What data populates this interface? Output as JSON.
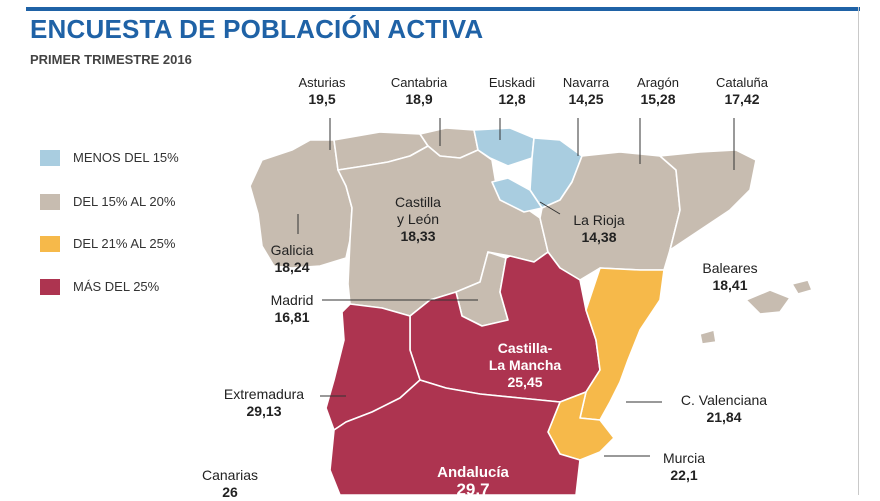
{
  "title": "ENCUESTA DE POBLACIÓN ACTIVA",
  "subtitle": "PRIMER TRIMESTRE 2016",
  "colors": {
    "accent": "#1f62a6",
    "menos_15": "#a9cde0",
    "entre_15_20": "#c7bcb0",
    "entre_21_25": "#f6b94a",
    "mas_25": "#ad3450",
    "border": "#ffffff"
  },
  "legend": [
    {
      "label": "MENOS DEL 15%",
      "color": "#a9cde0"
    },
    {
      "label": "DEL 15% AL 20%",
      "color": "#c7bcb0"
    },
    {
      "label": "DEL 21% AL 25%",
      "color": "#f6b94a"
    },
    {
      "label": "MÁS DEL 25%",
      "color": "#ad3450"
    }
  ],
  "regions": {
    "asturias": {
      "name": "Asturias",
      "value": "19,5"
    },
    "cantabria": {
      "name": "Cantabria",
      "value": "18,9"
    },
    "euskadi": {
      "name": "Euskadi",
      "value": "12,8"
    },
    "navarra": {
      "name": "Navarra",
      "value": "14,25"
    },
    "aragon": {
      "name": "Aragón",
      "value": "15,28"
    },
    "cataluna": {
      "name": "Cataluña",
      "value": "17,42"
    },
    "castilla_leon": {
      "name_line1": "Castilla",
      "name_line2": "y León",
      "value": "18,33"
    },
    "la_rioja": {
      "name": "La Rioja",
      "value": "14,38"
    },
    "galicia": {
      "name": "Galicia",
      "value": "18,24"
    },
    "baleares": {
      "name": "Baleares",
      "value": "18,41"
    },
    "madrid": {
      "name": "Madrid",
      "value": "16,81"
    },
    "castilla_la_mancha": {
      "name_line1": "Castilla-",
      "name_line2": "La Mancha",
      "value": "25,45"
    },
    "extremadura": {
      "name": "Extremadura",
      "value": "29,13"
    },
    "c_valenciana": {
      "name": "C. Valenciana",
      "value": "21,84"
    },
    "murcia": {
      "name": "Murcia",
      "value": "22,1"
    },
    "andalucia": {
      "name": "Andalucía",
      "value": "29,7"
    },
    "canarias": {
      "name": "Canarias",
      "value": "26"
    }
  }
}
